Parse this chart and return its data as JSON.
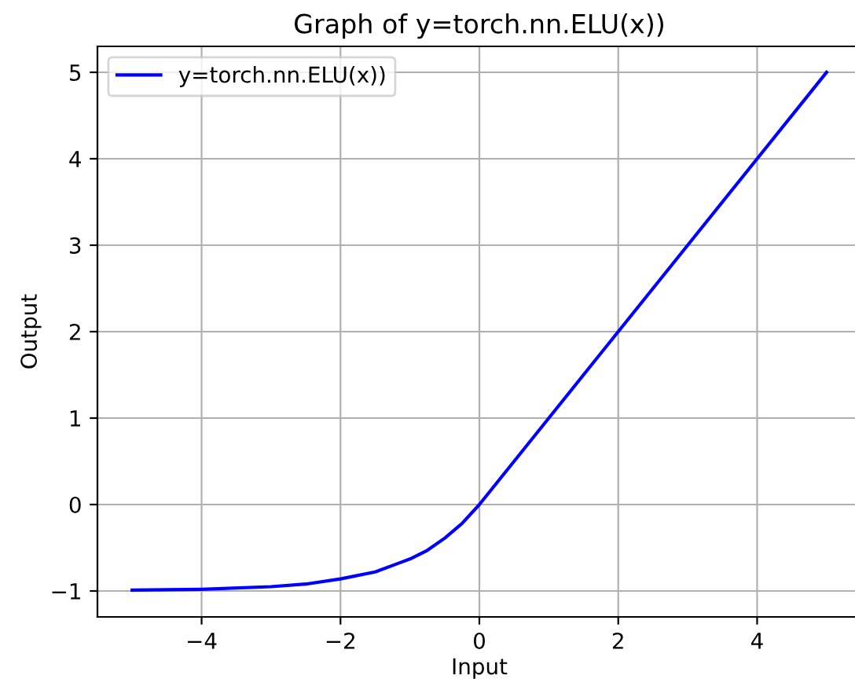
{
  "chart_data": {
    "type": "line",
    "title": "Graph of y=torch.nn.ELU(x))",
    "xlabel": "Input",
    "ylabel": "Output",
    "x": [
      -5,
      -4,
      -3,
      -2.5,
      -2,
      -1.5,
      -1,
      -0.75,
      -0.5,
      -0.25,
      0,
      1,
      2,
      3,
      4,
      5
    ],
    "series": [
      {
        "name": "y=torch.nn.ELU(x))",
        "color": "#0000ff",
        "values": [
          -0.99,
          -0.98,
          -0.95,
          -0.92,
          -0.86,
          -0.78,
          -0.63,
          -0.53,
          -0.39,
          -0.22,
          0,
          1,
          2,
          3,
          4,
          5
        ]
      }
    ],
    "xlim": [
      -5.5,
      5.5
    ],
    "ylim": [
      -1.3,
      5.3
    ],
    "xticks": [
      {
        "value": -4,
        "label": "−4"
      },
      {
        "value": -2,
        "label": "−2"
      },
      0,
      2,
      4
    ],
    "yticks": [
      {
        "value": -1,
        "label": "−1"
      },
      0,
      1,
      2,
      3,
      4,
      5
    ],
    "grid": true,
    "legend": "top left"
  }
}
